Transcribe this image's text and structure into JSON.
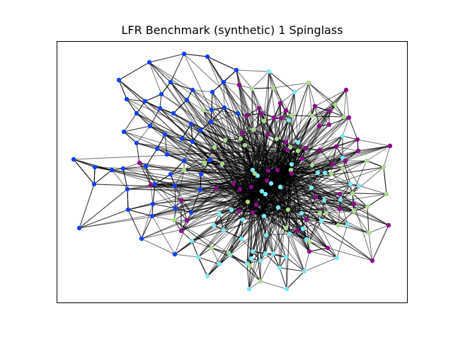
{
  "title": "LFR Benchmark (synthetic) 1 Spinglass",
  "style": {
    "edge_color": "#000000",
    "edge_opacity": 0.55,
    "frame_color": "#000000",
    "community_colors": [
      "#1142f5",
      "#7ae8f5",
      "#a8dc8c",
      "#8b0a8b"
    ]
  },
  "graph": {
    "type": "network",
    "layout": "spring",
    "communities": [
      {
        "color": "#1142f5"
      },
      {
        "color": "#7ae8f5"
      },
      {
        "color": "#a8dc8c"
      },
      {
        "color": "#8b0a8b"
      }
    ]
  }
}
